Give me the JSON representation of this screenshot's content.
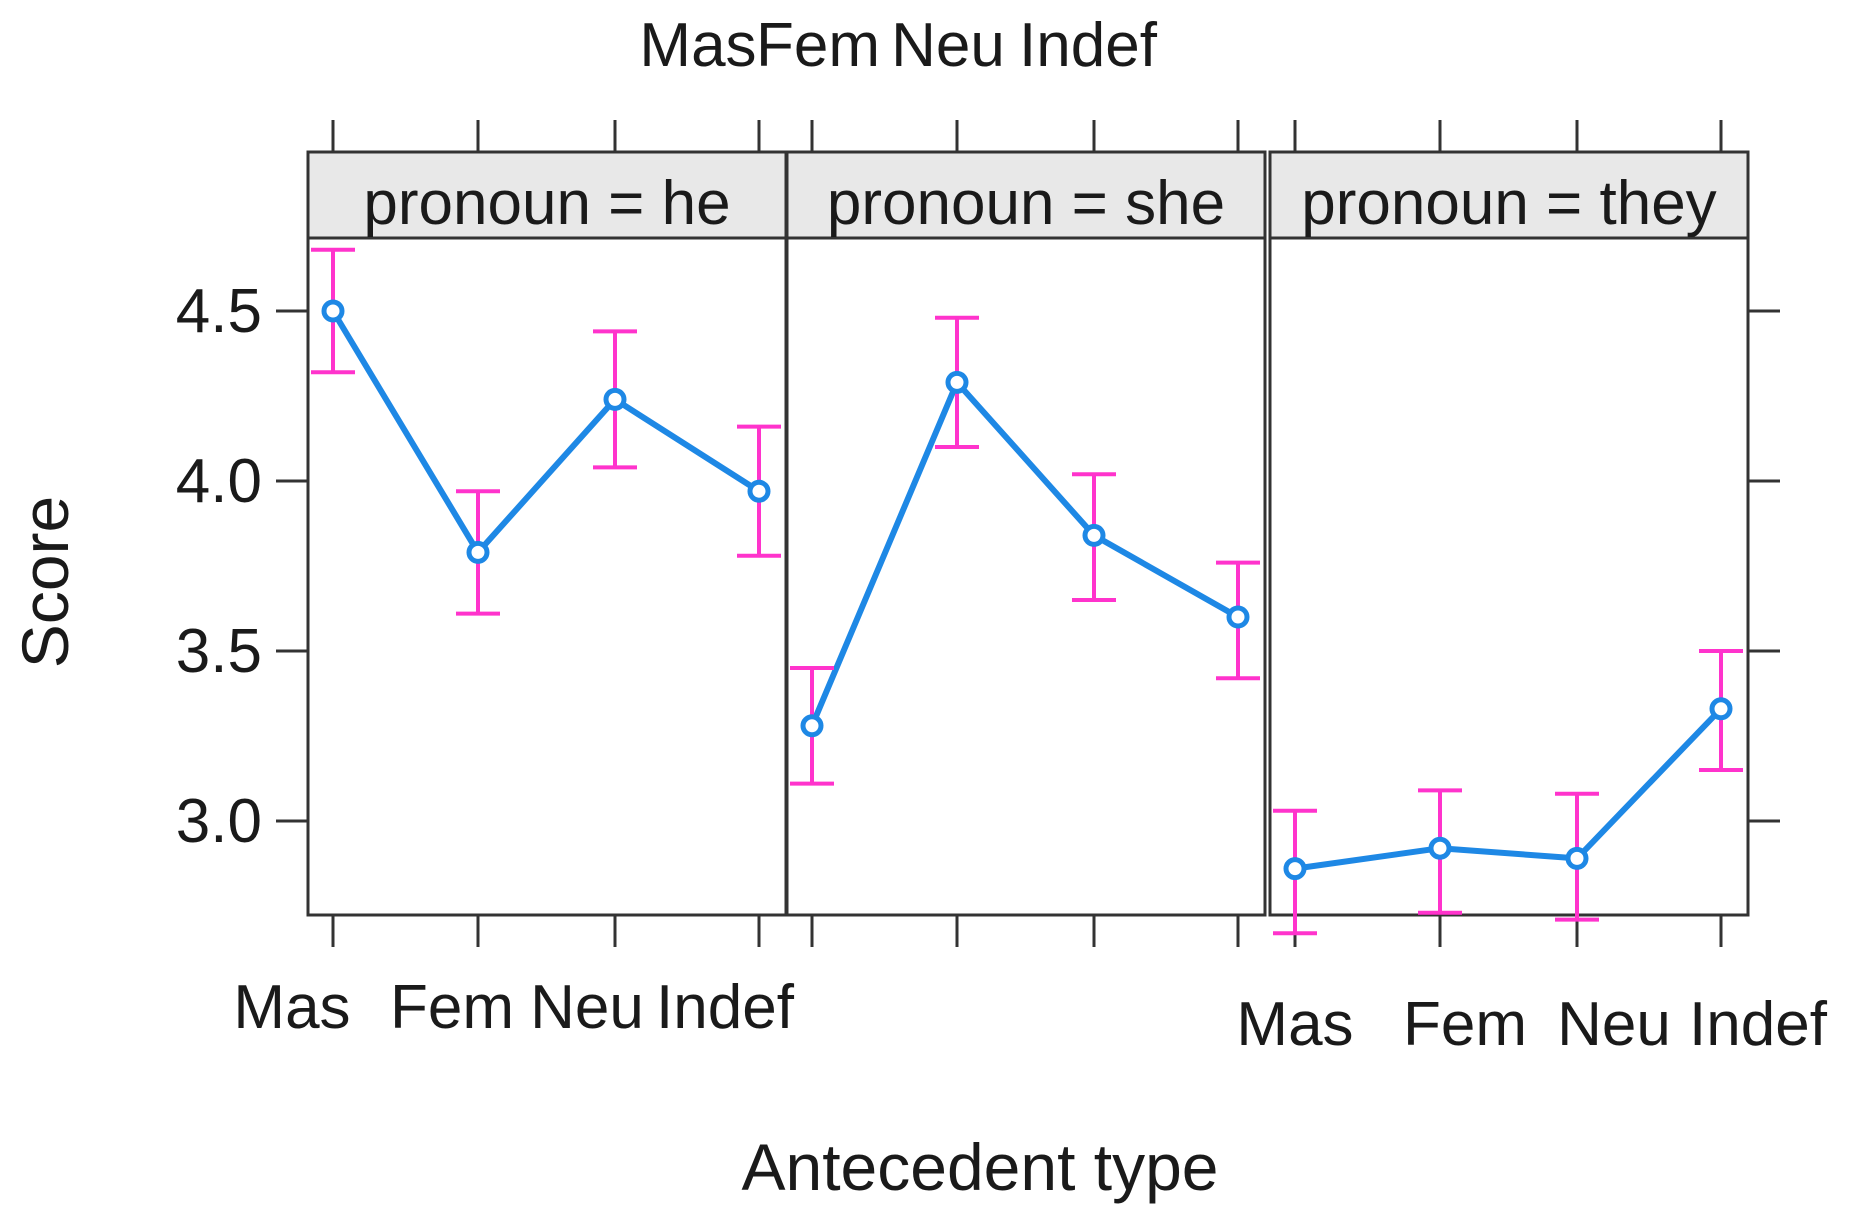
{
  "chart_data": {
    "type": "line",
    "layout": "lattice-panels",
    "xlabel": "Antecedent type",
    "ylabel": "Score",
    "categories": [
      "Mas",
      "Fem",
      "Neu",
      "Indef"
    ],
    "yticks": [
      "3.0",
      "3.5",
      "4.0",
      "4.5"
    ],
    "ylim": [
      2.62,
      4.78
    ],
    "error_bars": true,
    "colors": {
      "line": "#1e88e5",
      "error_bar": "#ff33cc",
      "strip": "#e8e8e8",
      "frame": "#333333"
    },
    "panels": [
      {
        "strip": "pronoun = he",
        "values": [
          4.5,
          3.79,
          4.24,
          3.97
        ],
        "lower": [
          4.32,
          3.61,
          4.04,
          3.78
        ],
        "upper": [
          4.68,
          3.97,
          4.44,
          4.16
        ]
      },
      {
        "strip": "pronoun = she",
        "values": [
          3.28,
          4.29,
          3.84,
          3.6
        ],
        "lower": [
          3.11,
          4.1,
          3.65,
          3.42
        ],
        "upper": [
          3.45,
          4.48,
          4.02,
          3.76
        ]
      },
      {
        "strip": "pronoun = they",
        "values": [
          2.86,
          2.92,
          2.89,
          3.33
        ],
        "lower": [
          2.67,
          2.73,
          2.71,
          3.15
        ],
        "upper": [
          3.03,
          3.09,
          3.08,
          3.5
        ]
      }
    ]
  }
}
